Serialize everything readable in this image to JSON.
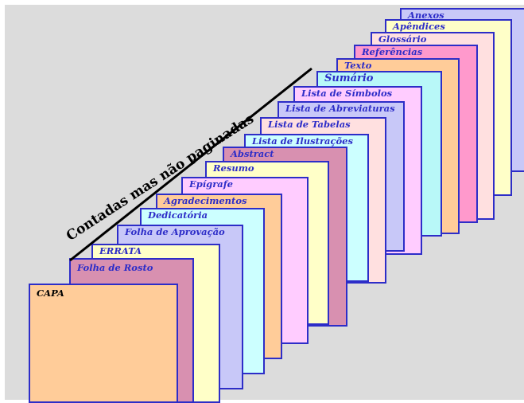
{
  "caption": "Contadas mas não paginadas",
  "cards": [
    {
      "label": "Anexos",
      "fill": "#c8c8f8"
    },
    {
      "label": "Apêndices",
      "fill": "#ffffc8"
    },
    {
      "label": "Glossário",
      "fill": "#ffe0e0"
    },
    {
      "label": "Referências",
      "fill": "#ff99cc"
    },
    {
      "label": "Texto",
      "fill": "#ffcc99"
    },
    {
      "label": "Sumário",
      "fill": "#b8f8f8"
    },
    {
      "label": "Lista de Símbolos",
      "fill": "#ffccff"
    },
    {
      "label": "Lista de Abreviaturas",
      "fill": "#c8c8f8"
    },
    {
      "label": "Lista de Tabelas",
      "fill": "#ffe0e0"
    },
    {
      "label": "Lista de Ilustrações",
      "fill": "#ccffff"
    },
    {
      "label": "Abstract",
      "fill": "#d890b0"
    },
    {
      "label": "Resumo",
      "fill": "#ffffc8"
    },
    {
      "label": "Epígrafe",
      "fill": "#ffccff"
    },
    {
      "label": "Agradecimentos",
      "fill": "#ffcc99"
    },
    {
      "label": "Dedicatória",
      "fill": "#ccffff"
    },
    {
      "label": "Folha de Aprovação",
      "fill": "#c8c8f8"
    },
    {
      "label": "ERRATA",
      "fill": "#ffffc8"
    },
    {
      "label": "Folha de Rosto",
      "fill": "#d890b0"
    },
    {
      "label": "CAPA",
      "fill": "#ffcc99"
    }
  ]
}
